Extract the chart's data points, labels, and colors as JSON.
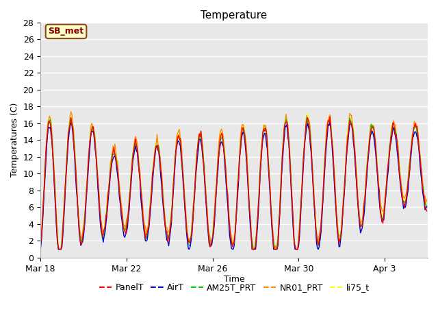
{
  "title": "Temperature",
  "ylabel": "Temperatures (C)",
  "xlabel": "Time",
  "station_label": "SB_met",
  "fig_bg_color": "#ffffff",
  "plot_bg_color": "#e8e8e8",
  "ylim": [
    0,
    28
  ],
  "yticks": [
    0,
    2,
    4,
    6,
    8,
    10,
    12,
    14,
    16,
    18,
    20,
    22,
    24,
    26,
    28
  ],
  "x_tick_labels": [
    "Mar 18",
    "Mar 22",
    "Mar 26",
    "Mar 30",
    "Apr 3"
  ],
  "x_tick_positions": [
    0,
    96,
    192,
    288,
    384
  ],
  "xlim": [
    0,
    432
  ],
  "series_colors": {
    "PanelT": "#ff0000",
    "AirT": "#0000cc",
    "AM25T_PRT": "#00cc00",
    "NR01_PRT": "#ff8c00",
    "li75_t": "#ffff00"
  },
  "series_order": [
    "li75_t",
    "NR01_PRT",
    "AM25T_PRT",
    "AirT",
    "PanelT"
  ],
  "legend_labels": [
    "PanelT",
    "AirT",
    "AM25T_PRT",
    "NR01_PRT",
    "li75_t"
  ],
  "legend_colors": [
    "#ff0000",
    "#0000cc",
    "#00cc00",
    "#ff8c00",
    "#ffff00"
  ],
  "lw": 1.0,
  "grid_color": "#ffffff",
  "grid_lw": 1.0
}
